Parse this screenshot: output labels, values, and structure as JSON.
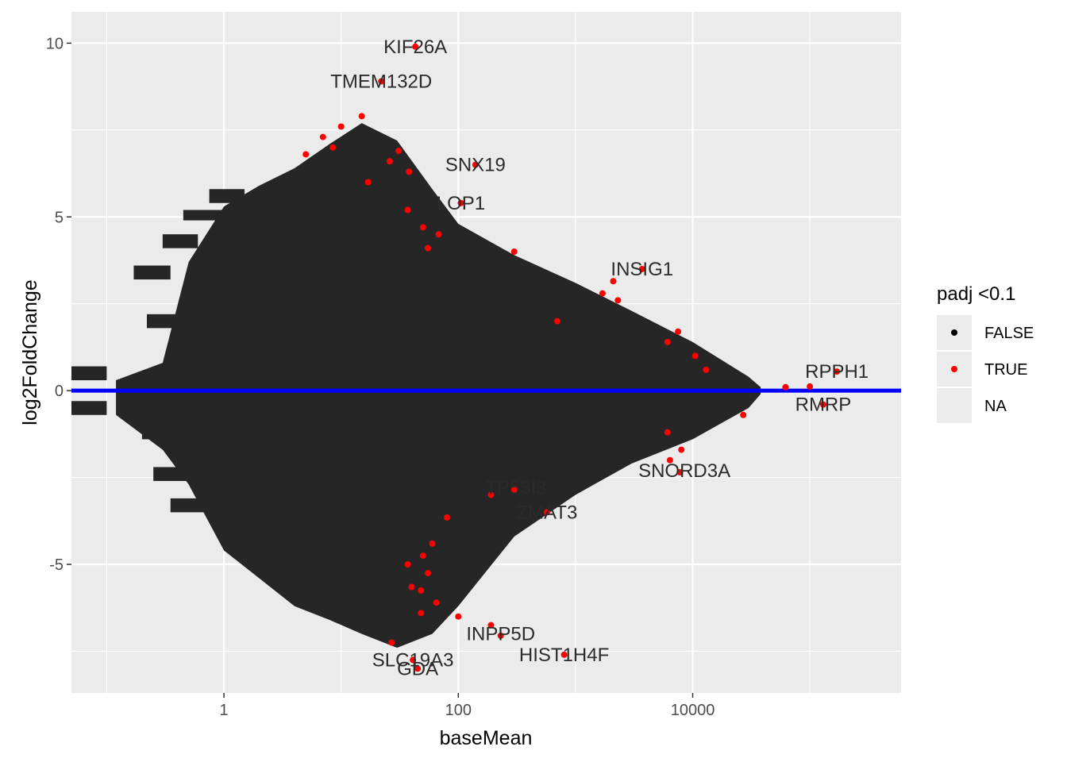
{
  "chart_data": {
    "type": "scatter",
    "title": "",
    "xlabel": "baseMean",
    "ylabel": "log2FoldChange",
    "x_scale": "log10",
    "xlim": [
      0.05,
      600000
    ],
    "ylim": [
      -8.7,
      10.9
    ],
    "x_ticks": [
      {
        "value": 1,
        "label": "1"
      },
      {
        "value": 100,
        "label": "100"
      },
      {
        "value": 10000,
        "label": "10000"
      }
    ],
    "y_ticks": [
      {
        "value": -5,
        "label": "-5"
      },
      {
        "value": 0,
        "label": "0"
      },
      {
        "value": 5,
        "label": "5"
      },
      {
        "value": 10,
        "label": "10"
      }
    ],
    "hline": {
      "y": 0,
      "color": "#0000FF"
    },
    "grid": true,
    "legend": {
      "title": "padj <0.1",
      "position": "right",
      "entries": [
        {
          "label": "FALSE",
          "color": "#000000"
        },
        {
          "label": "TRUE",
          "color": "#FF0000"
        },
        {
          "label": "NA",
          "color": "none"
        }
      ]
    },
    "labeled_genes": [
      {
        "name": "KIF26A",
        "x": 43,
        "y": 9.9
      },
      {
        "name": "TMEM132D",
        "x": 22,
        "y": 8.9
      },
      {
        "name": "SNX19",
        "x": 140,
        "y": 6.5
      },
      {
        "name": "LOP1",
        "x": 105,
        "y": 5.4
      },
      {
        "name": "INSIG1",
        "x": 3700,
        "y": 3.5
      },
      {
        "name": "RPPH1",
        "x": 170000,
        "y": 0.55
      },
      {
        "name": "RMRP",
        "x": 130000,
        "y": -0.4
      },
      {
        "name": "ZMAT3",
        "x": 570,
        "y": -3.5
      },
      {
        "name": "HIST1H4F",
        "x": 800,
        "y": -7.6
      },
      {
        "name": "SLC19A3",
        "x": 41,
        "y": -7.75
      },
      {
        "name": "GDA",
        "x": 45,
        "y": -8.0
      },
      {
        "name": "INPP5D",
        "x": 230,
        "y": -7.0
      },
      {
        "name": "SNORD3A",
        "x": 8500,
        "y": -2.3
      },
      {
        "name": "TP53I3",
        "x": 310,
        "y": -2.8
      }
    ],
    "points_red": [
      {
        "x": 43,
        "y": 9.9
      },
      {
        "x": 22,
        "y": 8.9
      },
      {
        "x": 15,
        "y": 7.9
      },
      {
        "x": 10,
        "y": 7.6
      },
      {
        "x": 7.0,
        "y": 7.3
      },
      {
        "x": 8.5,
        "y": 7.0
      },
      {
        "x": 31,
        "y": 6.9
      },
      {
        "x": 5.0,
        "y": 6.8
      },
      {
        "x": 26,
        "y": 6.6
      },
      {
        "x": 140,
        "y": 6.5
      },
      {
        "x": 38,
        "y": 6.3
      },
      {
        "x": 17,
        "y": 6.0
      },
      {
        "x": 105,
        "y": 5.4
      },
      {
        "x": 37,
        "y": 5.2
      },
      {
        "x": 50,
        "y": 4.7
      },
      {
        "x": 68,
        "y": 4.5
      },
      {
        "x": 55,
        "y": 4.1
      },
      {
        "x": 300,
        "y": 4.0
      },
      {
        "x": 3700,
        "y": 3.5
      },
      {
        "x": 2100,
        "y": 3.15
      },
      {
        "x": 1700,
        "y": 2.8
      },
      {
        "x": 2300,
        "y": 2.6
      },
      {
        "x": 700,
        "y": 2.0
      },
      {
        "x": 7500,
        "y": 1.7
      },
      {
        "x": 6100,
        "y": 1.4
      },
      {
        "x": 10500,
        "y": 1.0
      },
      {
        "x": 13000,
        "y": 0.6
      },
      {
        "x": 170000,
        "y": 0.55
      },
      {
        "x": 100000,
        "y": 0.12
      },
      {
        "x": 62000,
        "y": 0.1
      },
      {
        "x": 130000,
        "y": -0.4
      },
      {
        "x": 27000,
        "y": -0.7
      },
      {
        "x": 6100,
        "y": -1.2
      },
      {
        "x": 8000,
        "y": -1.7
      },
      {
        "x": 6400,
        "y": -2.0
      },
      {
        "x": 7800,
        "y": -2.35
      },
      {
        "x": 300,
        "y": -2.85
      },
      {
        "x": 190,
        "y": -3.0
      },
      {
        "x": 570,
        "y": -3.5
      },
      {
        "x": 80,
        "y": -3.65
      },
      {
        "x": 60,
        "y": -4.4
      },
      {
        "x": 50,
        "y": -4.75
      },
      {
        "x": 37,
        "y": -5.0
      },
      {
        "x": 55,
        "y": -5.25
      },
      {
        "x": 40,
        "y": -5.65
      },
      {
        "x": 48,
        "y": -5.75
      },
      {
        "x": 65,
        "y": -6.1
      },
      {
        "x": 48,
        "y": -6.4
      },
      {
        "x": 100,
        "y": -6.5
      },
      {
        "x": 190,
        "y": -6.75
      },
      {
        "x": 230,
        "y": -7.05
      },
      {
        "x": 27,
        "y": -7.25
      },
      {
        "x": 800,
        "y": -7.6
      },
      {
        "x": 41,
        "y": -7.75
      },
      {
        "x": 45,
        "y": -8.0
      }
    ]
  }
}
